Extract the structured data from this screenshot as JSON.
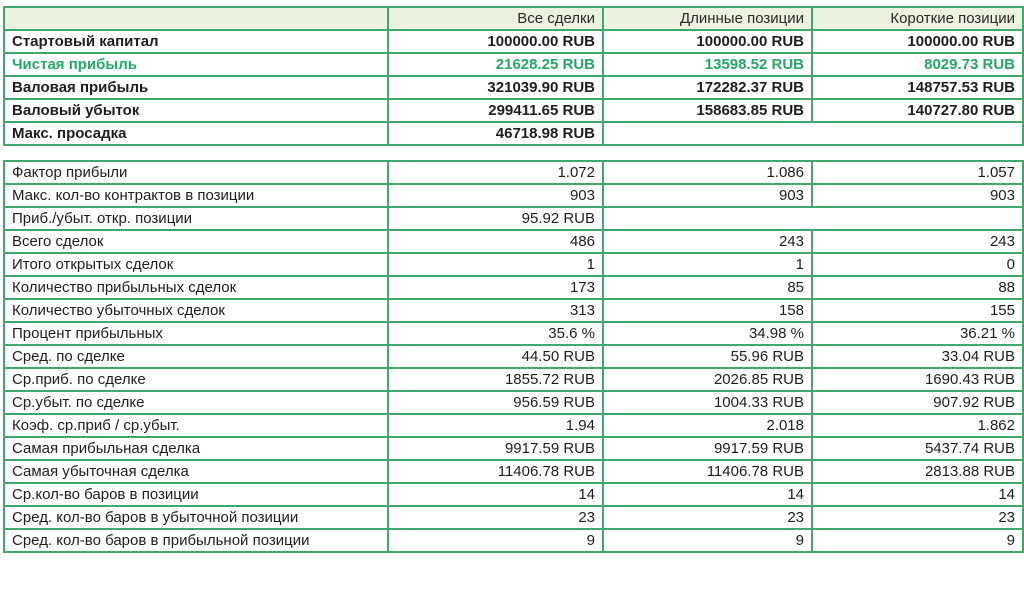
{
  "colors": {
    "border_green": "#3fa96d",
    "header_bg": "#ebf2df",
    "green_text": "#22a964",
    "text": "#1e1e1e"
  },
  "currency": "RUB",
  "header": {
    "columns": [
      "Все сделки",
      "Длинные позиции",
      "Короткие позиции"
    ]
  },
  "summary_table": {
    "rows": [
      {
        "label": "Стартовый капитал",
        "values": [
          "100000.00 RUB",
          "100000.00 RUB",
          "100000.00 RUB"
        ]
      },
      {
        "label": "Чистая прибыль",
        "color": "green",
        "values": [
          "21628.25 RUB",
          "13598.52 RUB",
          "8029.73 RUB"
        ]
      },
      {
        "label": "Валовая прибыль",
        "values": [
          "321039.90 RUB",
          "172282.37 RUB",
          "148757.53 RUB"
        ]
      },
      {
        "label": "Валовый убыток",
        "values": [
          "299411.65 RUB",
          "158683.85 RUB",
          "140727.80 RUB"
        ]
      },
      {
        "label": "Макс. просадка",
        "merge_tail": true,
        "values": [
          "46718.98 RUB"
        ]
      }
    ]
  },
  "stats_table": {
    "rows": [
      {
        "label": "Фактор прибыли",
        "values": [
          "1.072",
          "1.086",
          "1.057"
        ]
      },
      {
        "label": "Макс. кол-во контрактов в позиции",
        "values": [
          "903",
          "903",
          "903"
        ]
      },
      {
        "label": "Приб./убыт. откр. позиции",
        "merge_tail": true,
        "values": [
          "95.92 RUB"
        ]
      },
      {
        "label": "Всего сделок",
        "values": [
          "486",
          "243",
          "243"
        ]
      },
      {
        "label": "Итого открытых сделок",
        "values": [
          "1",
          "1",
          "0"
        ]
      },
      {
        "label": "Количество прибыльных сделок",
        "values": [
          "173",
          "85",
          "88"
        ]
      },
      {
        "label": "Количество убыточных сделок",
        "values": [
          "313",
          "158",
          "155"
        ]
      },
      {
        "label": "Процент прибыльных",
        "values": [
          "35.6 %",
          "34.98 %",
          "36.21 %"
        ]
      },
      {
        "label": "Сред. по сделке",
        "values": [
          "44.50 RUB",
          "55.96 RUB",
          "33.04 RUB"
        ]
      },
      {
        "label": "Ср.приб. по сделке",
        "values": [
          "1855.72 RUB",
          "2026.85 RUB",
          "1690.43 RUB"
        ]
      },
      {
        "label": "Ср.убыт. по сделке",
        "values": [
          "956.59 RUB",
          "1004.33 RUB",
          "907.92 RUB"
        ]
      },
      {
        "label": "Коэф. ср.приб / ср.убыт.",
        "values": [
          "1.94",
          "2.018",
          "1.862"
        ]
      },
      {
        "label": "Самая прибыльная сделка",
        "values": [
          "9917.59 RUB",
          "9917.59 RUB",
          "5437.74 RUB"
        ]
      },
      {
        "label": "Самая убыточная сделка",
        "values": [
          "11406.78 RUB",
          "11406.78 RUB",
          "2813.88 RUB"
        ]
      },
      {
        "label": "Ср.кол-во баров в позиции",
        "values": [
          "14",
          "14",
          "14"
        ]
      },
      {
        "label": "Сред. кол-во баров в убыточной позиции",
        "values": [
          "23",
          "23",
          "23"
        ]
      },
      {
        "label": "Сред. кол-во баров в прибыльной позиции",
        "values": [
          "9",
          "9",
          "9"
        ]
      }
    ]
  }
}
